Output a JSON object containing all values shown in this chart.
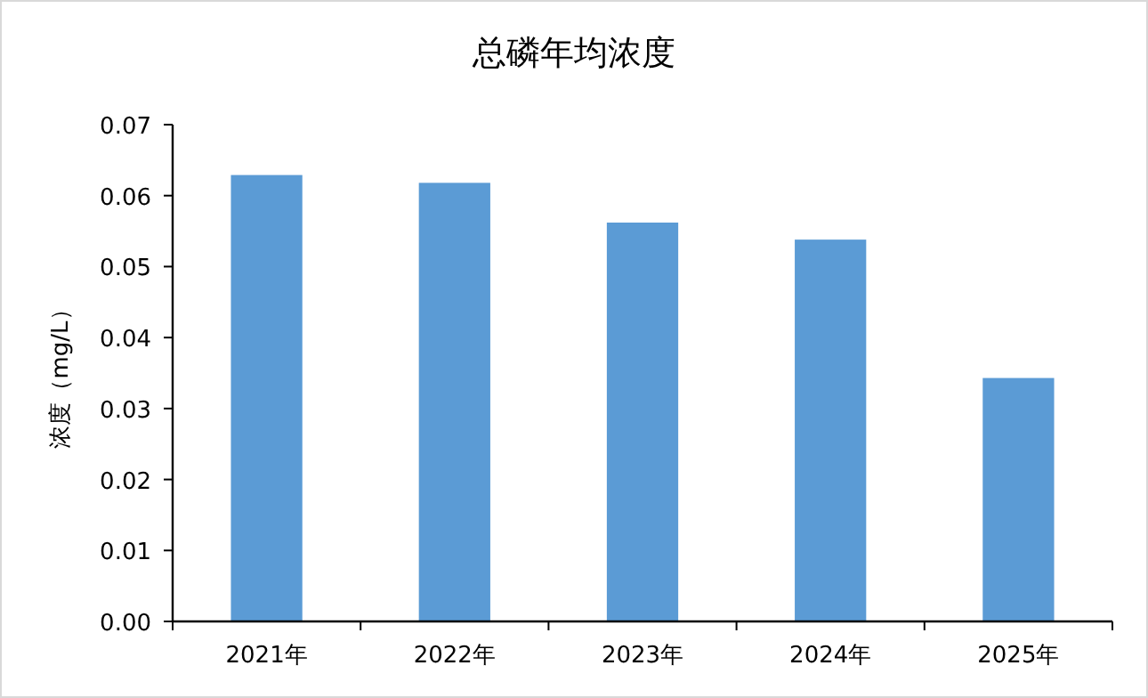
{
  "chart_data": {
    "type": "bar",
    "title": "总磷年均浓度",
    "ylabel": "浓度（mg/L）",
    "categories": [
      "2021年",
      "2022年",
      "2023年",
      "2024年",
      "2025年"
    ],
    "values": [
      0.0629,
      0.0618,
      0.0562,
      0.0538,
      0.0343
    ],
    "color": "#5b9bd5",
    "ylim": [
      0,
      0.07
    ],
    "yticks": [
      {
        "value": 0,
        "label": "0.00"
      },
      {
        "value": 0.01,
        "label": "0.01"
      },
      {
        "value": 0.02,
        "label": "0.02"
      },
      {
        "value": 0.03,
        "label": "0.03"
      },
      {
        "value": 0.04,
        "label": "0.04"
      },
      {
        "value": 0.05,
        "label": "0.05"
      },
      {
        "value": 0.06,
        "label": "0.06"
      },
      {
        "value": 0.07,
        "label": "0.07"
      }
    ],
    "grid": false
  }
}
